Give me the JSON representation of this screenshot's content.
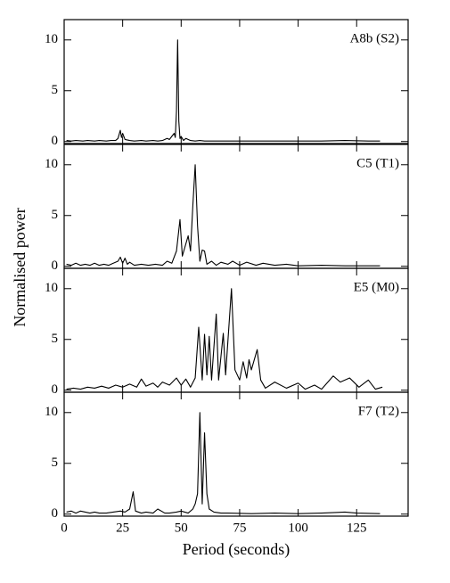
{
  "y_label": "Normalised power",
  "x_label": "Period  (seconds)",
  "chart_data": [
    {
      "type": "line",
      "label": "A8b (S2)",
      "color": "#000000",
      "xlim": [
        0,
        147
      ],
      "ylim": [
        -0.2,
        12
      ],
      "yticks": [
        0,
        5,
        10
      ],
      "xticks": [
        0,
        25,
        50,
        75,
        100,
        125
      ],
      "x": [
        1,
        3,
        5,
        8,
        10,
        13,
        15,
        18,
        20,
        22,
        23,
        24,
        24.5,
        25,
        26,
        28,
        30,
        33,
        35,
        38,
        40,
        42,
        44,
        45,
        46,
        47,
        47.5,
        48,
        48.5,
        49,
        49.5,
        50,
        51,
        52,
        54,
        56,
        58,
        60,
        65,
        70,
        75,
        80,
        90,
        100,
        110,
        120,
        130,
        135
      ],
      "values": [
        0.1,
        0.05,
        0.1,
        0.05,
        0.1,
        0.05,
        0.1,
        0.05,
        0.1,
        0.1,
        0.3,
        1.1,
        0.4,
        0.8,
        0.2,
        0.1,
        0.05,
        0.1,
        0.05,
        0.1,
        0.05,
        0.1,
        0.3,
        0.2,
        0.5,
        0.8,
        0.4,
        3,
        10,
        2,
        0.3,
        0.5,
        0.1,
        0.3,
        0.1,
        0.05,
        0.1,
        0.05,
        0.05,
        0.05,
        0.05,
        0.05,
        0.05,
        0.05,
        0.05,
        0.1,
        0.05,
        0.05
      ]
    },
    {
      "type": "line",
      "label": "C5 (T1)",
      "color": "#000000",
      "xlim": [
        0,
        147
      ],
      "ylim": [
        -0.2,
        12
      ],
      "yticks": [
        0,
        5,
        10
      ],
      "xticks": [
        0,
        25,
        50,
        75,
        100,
        125
      ],
      "x": [
        1,
        3,
        5,
        7,
        9,
        11,
        13,
        15,
        17,
        19,
        21,
        23,
        24,
        25,
        26,
        27,
        28,
        30,
        33,
        36,
        39,
        42,
        44,
        46,
        48,
        49.5,
        50.5,
        52,
        53,
        54,
        55,
        56,
        57,
        58,
        59,
        60,
        61,
        63,
        65,
        67,
        70,
        72,
        75,
        78,
        82,
        85,
        90,
        95,
        100,
        110,
        120,
        135
      ],
      "values": [
        0.2,
        0.1,
        0.3,
        0.1,
        0.2,
        0.1,
        0.3,
        0.1,
        0.2,
        0.1,
        0.3,
        0.5,
        0.9,
        0.3,
        0.8,
        0.2,
        0.4,
        0.1,
        0.2,
        0.1,
        0.2,
        0.1,
        0.5,
        0.3,
        1.5,
        4.6,
        1,
        2.2,
        3,
        1.5,
        6,
        10,
        4,
        0.5,
        1.6,
        1.5,
        0.2,
        0.5,
        0.1,
        0.4,
        0.2,
        0.5,
        0.1,
        0.4,
        0.1,
        0.3,
        0.1,
        0.2,
        0.05,
        0.1,
        0.05,
        0.05
      ]
    },
    {
      "type": "line",
      "label": "E5 (M0)",
      "color": "#000000",
      "xlim": [
        0,
        147
      ],
      "ylim": [
        -0.2,
        12
      ],
      "yticks": [
        0,
        5,
        10
      ],
      "xticks": [
        0,
        25,
        50,
        75,
        100,
        125
      ],
      "x": [
        1,
        4,
        7,
        10,
        13,
        16,
        19,
        22,
        25,
        28,
        31,
        33,
        35,
        38,
        40,
        42,
        45,
        48,
        50,
        52,
        54,
        56,
        57.5,
        59,
        60,
        61,
        62,
        63,
        65,
        66,
        68,
        69,
        71.5,
        73,
        75,
        76.5,
        78,
        79,
        80,
        82.5,
        84,
        86,
        90,
        95,
        100,
        103,
        107,
        110,
        115,
        118,
        122,
        126,
        130,
        133,
        136
      ],
      "values": [
        0.1,
        0.2,
        0.1,
        0.3,
        0.2,
        0.4,
        0.2,
        0.5,
        0.3,
        0.6,
        0.3,
        1.1,
        0.4,
        0.7,
        0.3,
        0.8,
        0.5,
        1.2,
        0.5,
        1.1,
        0.3,
        1.2,
        6.2,
        1,
        5.5,
        1.5,
        5.3,
        1,
        7.5,
        1,
        5.6,
        1.5,
        10,
        2,
        1,
        2.8,
        1.2,
        3,
        2,
        4,
        1,
        0.2,
        0.8,
        0.2,
        0.7,
        0.1,
        0.5,
        0.1,
        1.4,
        0.8,
        1.2,
        0.3,
        1,
        0.1,
        0.3
      ]
    },
    {
      "type": "line",
      "label": "F7 (T2)",
      "color": "#000000",
      "xlim": [
        0,
        147
      ],
      "ylim": [
        -0.2,
        12
      ],
      "yticks": [
        0,
        5,
        10
      ],
      "xticks": [
        0,
        25,
        50,
        75,
        100,
        125
      ],
      "x": [
        1,
        3,
        5,
        7,
        9,
        11,
        13,
        15,
        18,
        21,
        24,
        26,
        28,
        29.5,
        30.5,
        33,
        35,
        38,
        40,
        43,
        45,
        48,
        50,
        53,
        55,
        56,
        57,
        58,
        59,
        60,
        61,
        62,
        64,
        67,
        70,
        80,
        90,
        100,
        110,
        120,
        125,
        135
      ],
      "values": [
        0.2,
        0.3,
        0.1,
        0.3,
        0.2,
        0.1,
        0.2,
        0.1,
        0.1,
        0.2,
        0.3,
        0.2,
        0.5,
        2.2,
        0.3,
        0.1,
        0.2,
        0.1,
        0.5,
        0.1,
        0.1,
        0.2,
        0.3,
        0.1,
        0.5,
        1,
        2,
        10,
        1,
        8,
        2,
        0.5,
        0.2,
        0.1,
        0.1,
        0.05,
        0.1,
        0.05,
        0.1,
        0.2,
        0.1,
        0.05
      ]
    }
  ]
}
